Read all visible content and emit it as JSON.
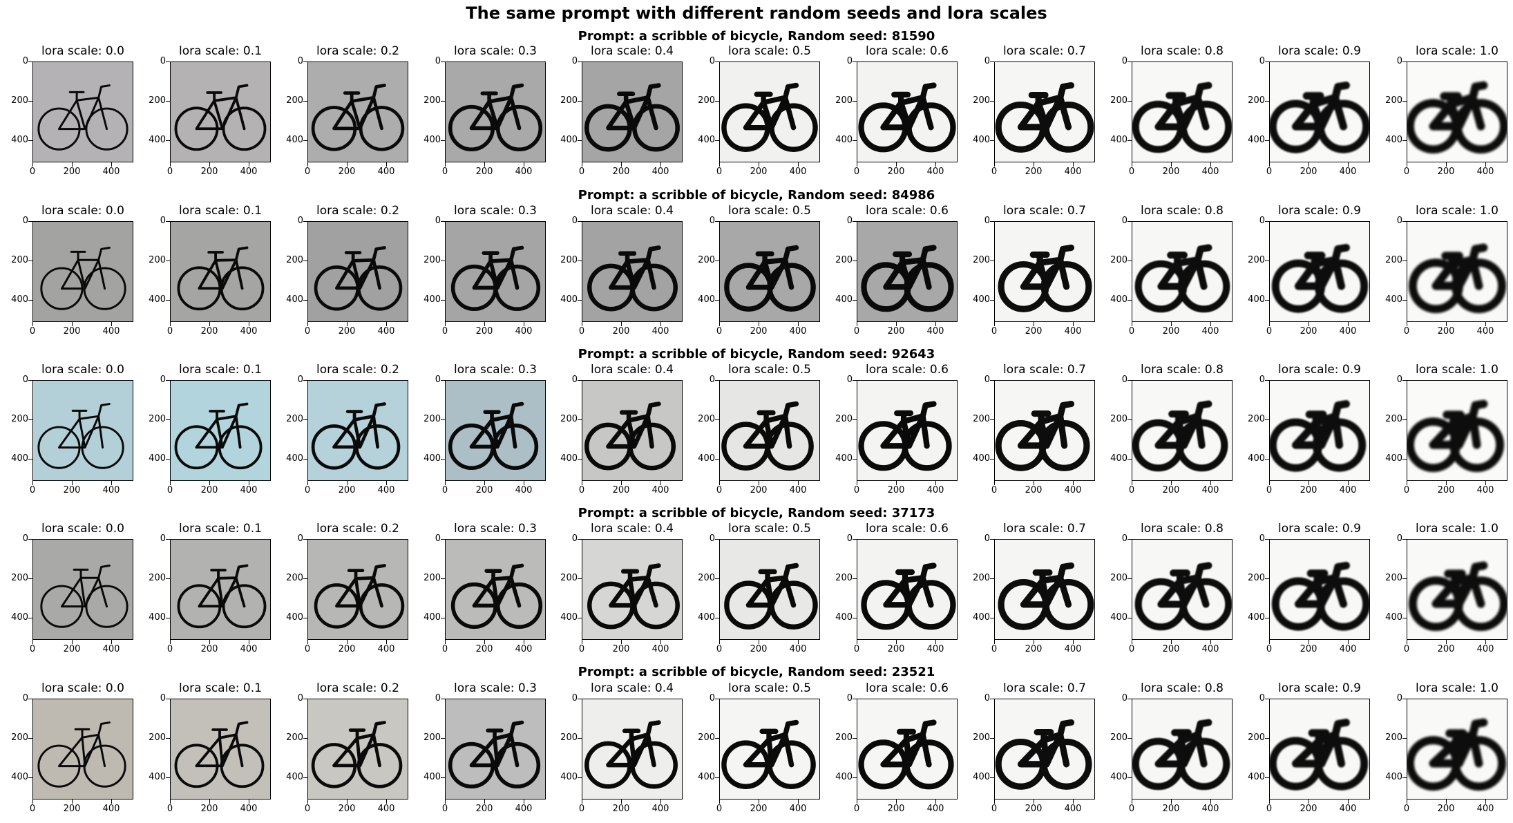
{
  "figure": {
    "title": "The same prompt with different random seeds and lora scales",
    "panel_title_prefix": "lora scale: ",
    "lora_scales": [
      "0.0",
      "0.1",
      "0.2",
      "0.3",
      "0.4",
      "0.5",
      "0.6",
      "0.7",
      "0.8",
      "0.9",
      "1.0"
    ],
    "y_ticks": [
      "0",
      "200",
      "400"
    ],
    "x_ticks": [
      "0",
      "200",
      "400"
    ],
    "rows": [
      {
        "title": "Prompt: a scribble of bicycle, Random seed: 81590",
        "backgrounds": [
          "#b4b2b4",
          "#b4b2b2",
          "#aeadad",
          "#a9a9a9",
          "#a5a5a5",
          "#f1f1ef",
          "#f3f3f1",
          "#f6f6f4",
          "#f8f8f6",
          "#f9f9f7",
          "#fafaf8"
        ]
      },
      {
        "title": "Prompt: a scribble of bicycle, Random seed: 84986",
        "backgrounds": [
          "#a3a3a1",
          "#a5a5a3",
          "#a1a1a1",
          "#a5a5a5",
          "#a3a3a3",
          "#a8a8a8",
          "#a8a8a8",
          "#f5f6f4",
          "#f7f8f6",
          "#f8f9f7",
          "#f9faf8"
        ]
      },
      {
        "title": "Prompt: a scribble of bicycle, Random seed: 92643",
        "backgrounds": [
          "#b3cfd8",
          "#b2d4dc",
          "#b5d2da",
          "#adbfc6",
          "#c7c7c5",
          "#e6e6e4",
          "#f4f4f2",
          "#f6f6f4",
          "#f8f8f6",
          "#f9f9f7",
          "#fafaf8"
        ]
      },
      {
        "title": "Prompt: a scribble of bicycle, Random seed: 37173",
        "backgrounds": [
          "#a9a9a7",
          "#b2b2b0",
          "#b7b7b5",
          "#bbbbb9",
          "#d6d6d4",
          "#e8e8e6",
          "#f3f3f1",
          "#f5f5f3",
          "#f7f7f5",
          "#f8f8f6",
          "#f9f9f7"
        ]
      },
      {
        "title": "Prompt: a scribble of bicycle, Random seed: 23521",
        "backgrounds": [
          "#bebab2",
          "#c3c0b9",
          "#c9c7c2",
          "#bdbdbd",
          "#eeeeec",
          "#f5f5f3",
          "#f6f6f4",
          "#f6f6f4",
          "#f7f7f5",
          "#f8f8f6",
          "#f9f9f7"
        ]
      }
    ]
  }
}
